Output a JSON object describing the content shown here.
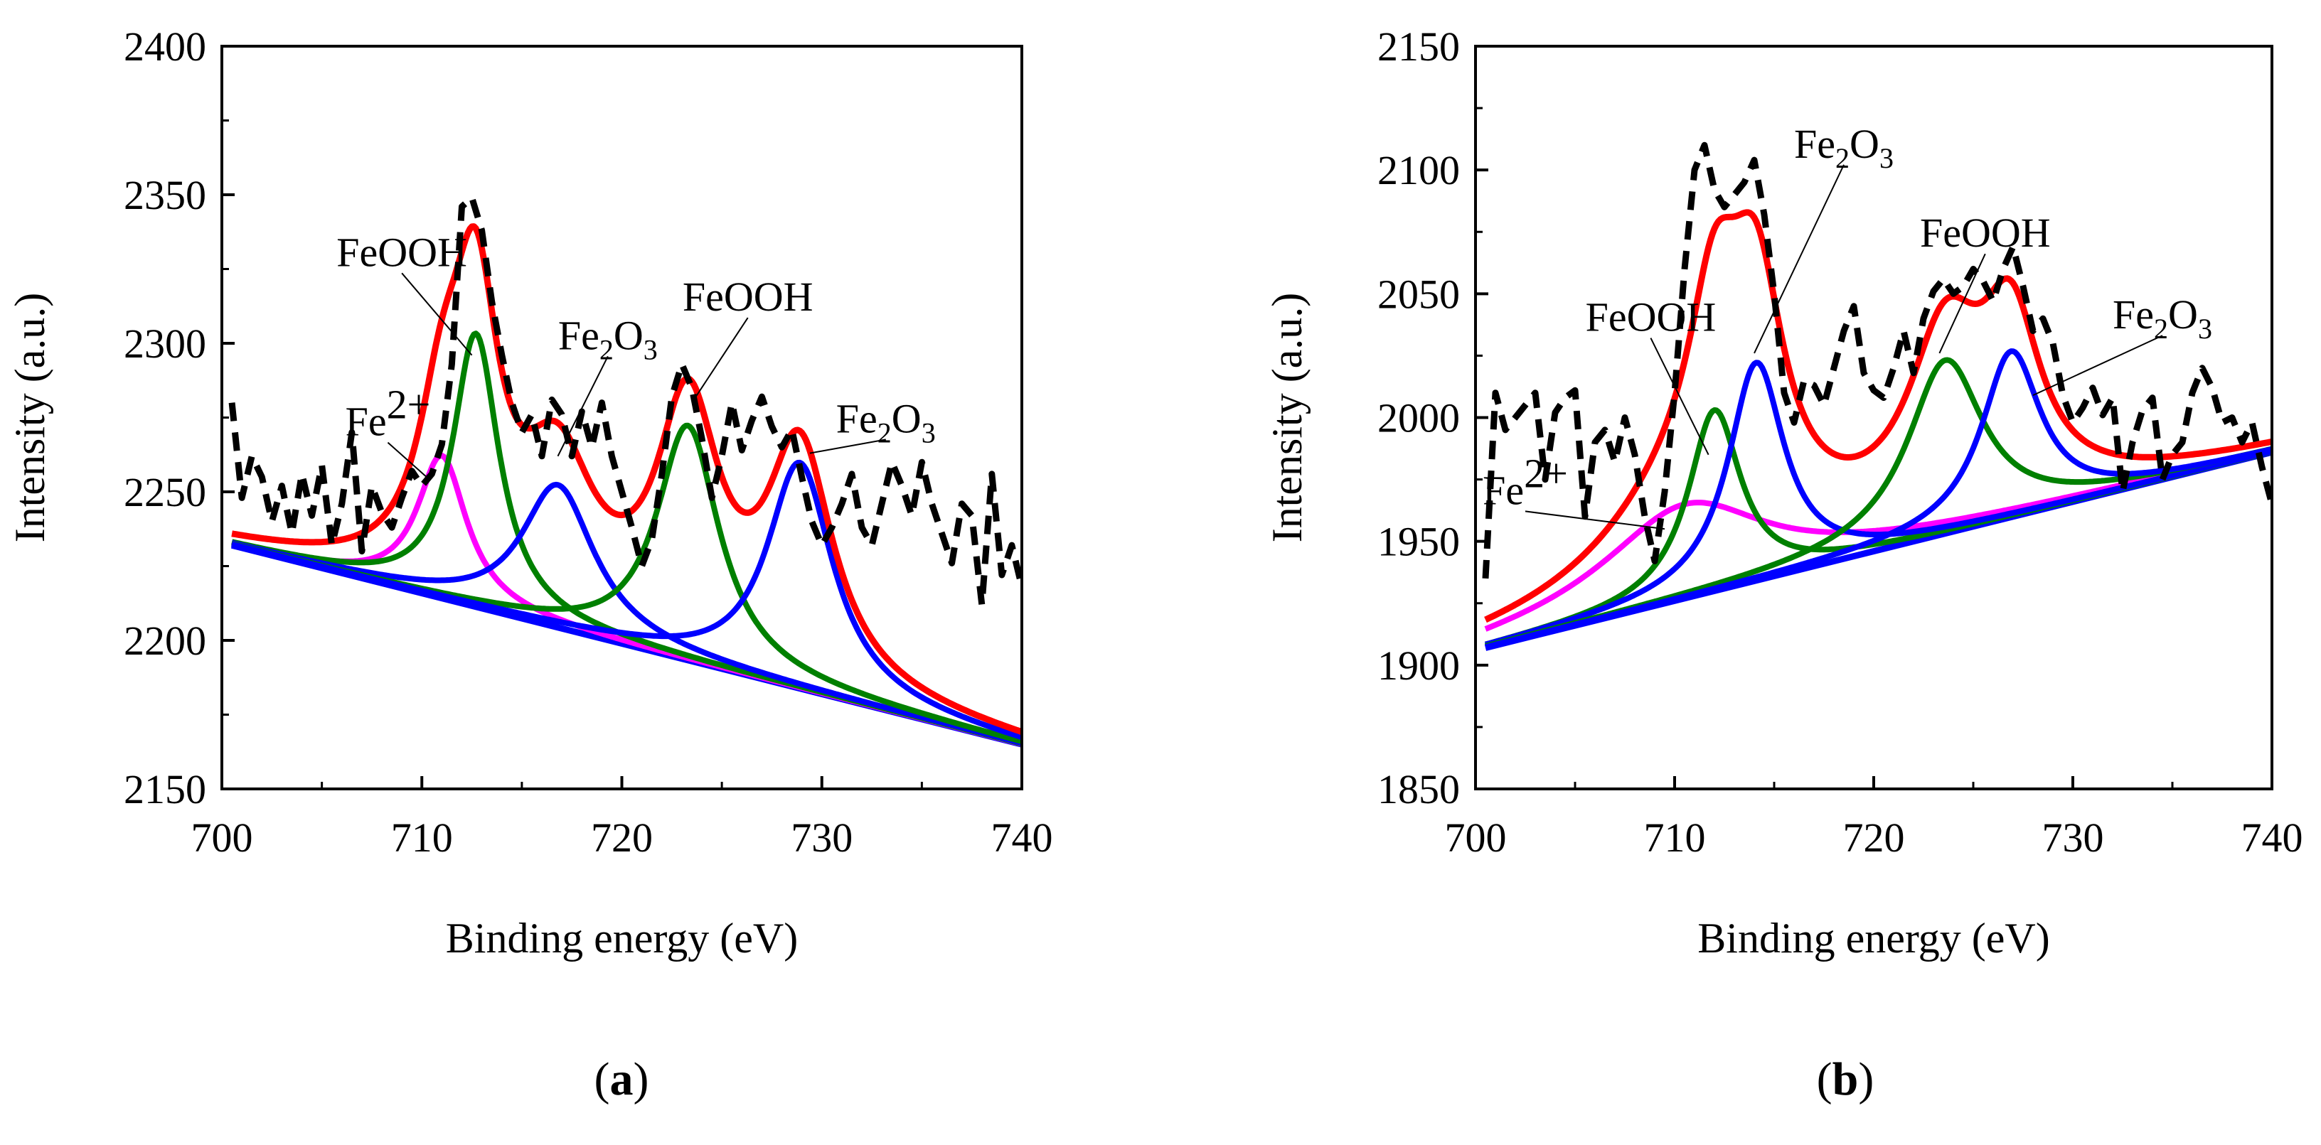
{
  "chart_data": [
    {
      "type": "line",
      "panel_label": {
        "open": "(",
        "letter": "a",
        "close": ")"
      },
      "xlabel": "Binding energy (eV)",
      "ylabel": "Intensity (a.u.)",
      "xlim": [
        700,
        740
      ],
      "ylim": [
        2150,
        2400
      ],
      "xticks": [
        700,
        710,
        720,
        730,
        740
      ],
      "yticks": [
        2150,
        2200,
        2250,
        2300,
        2350,
        2400
      ],
      "xtick_labels": [
        "700",
        "710",
        "720",
        "730",
        "740"
      ],
      "ytick_labels": [
        "2150",
        "2200",
        "2250",
        "2300",
        "2350",
        "2400"
      ],
      "colors": {
        "raw": "#000000",
        "envelope": "#ff0000",
        "fe2": "#ff00ff",
        "feooh": "#008000",
        "fe2o3": "#0000ff",
        "baseline": "#0000ff"
      },
      "baseline": {
        "x": [
          700.5,
          740
        ],
        "y": [
          2232,
          2165
        ]
      },
      "peaks": [
        {
          "series": "fe2",
          "color_key": "fe2",
          "center": 711.0,
          "height": 48,
          "width": 1.5
        },
        {
          "series": "feooh",
          "color_key": "feooh",
          "center": 712.7,
          "height": 92,
          "width": 1.4
        },
        {
          "series": "fe2o3",
          "color_key": "fe2o3",
          "center": 716.8,
          "height": 48,
          "width": 2.2
        },
        {
          "series": "feooh",
          "color_key": "feooh",
          "center": 723.3,
          "height": 79,
          "width": 1.9
        },
        {
          "series": "fe2o3",
          "color_key": "fe2o3",
          "center": 728.9,
          "height": 76,
          "width": 2.0
        }
      ],
      "raw_data": {
        "x": [
          700.5,
          701,
          701.5,
          702,
          702.5,
          703,
          703.5,
          704,
          704.5,
          705,
          705.5,
          706,
          706.5,
          707,
          707.5,
          708,
          708.5,
          709,
          709.5,
          710,
          710.5,
          711,
          711.5,
          712,
          712.5,
          713,
          713.5,
          714,
          714.5,
          715,
          715.5,
          716,
          716.5,
          717,
          717.5,
          718,
          718.5,
          719,
          719.5,
          720,
          720.5,
          721,
          721.5,
          722,
          722.5,
          723,
          723.5,
          724,
          724.5,
          725,
          725.5,
          726,
          726.5,
          727,
          727.5,
          728,
          728.5,
          729,
          729.5,
          730,
          730.5,
          731,
          731.5,
          732,
          732.5,
          733,
          733.5,
          734,
          734.5,
          735,
          735.5,
          736,
          736.5,
          737,
          737.5,
          738,
          738.5,
          739,
          739.5,
          740
        ],
        "y": [
          2280,
          2248,
          2262,
          2255,
          2240,
          2252,
          2236,
          2256,
          2242,
          2259,
          2232,
          2246,
          2270,
          2230,
          2252,
          2243,
          2238,
          2248,
          2257,
          2252,
          2256,
          2266,
          2293,
          2346,
          2349,
          2338,
          2314,
          2296,
          2280,
          2270,
          2276,
          2262,
          2281,
          2276,
          2262,
          2277,
          2265,
          2280,
          2262,
          2250,
          2238,
          2225,
          2234,
          2256,
          2282,
          2293,
          2285,
          2268,
          2248,
          2262,
          2280,
          2264,
          2274,
          2282,
          2272,
          2265,
          2271,
          2255,
          2240,
          2232,
          2238,
          2246,
          2256,
          2238,
          2232,
          2246,
          2260,
          2252,
          2242,
          2260,
          2246,
          2236,
          2226,
          2246,
          2242,
          2212,
          2256,
          2222,
          2232,
          2218
        ]
      },
      "annotations": [
        {
          "text": "FeOOH",
          "sub": "",
          "tail": "",
          "anchor_x": 712.5,
          "anchor_y": 2296,
          "label_x": 709.0,
          "label_y": 2326,
          "line": true
        },
        {
          "text": "Fe",
          "sub": "",
          "tail": "",
          "sup": "2+",
          "anchor_x": 710.4,
          "anchor_y": 2254,
          "label_x": 708.3,
          "label_y": 2269,
          "line": true
        },
        {
          "text": "Fe",
          "sub": "2",
          "tail": "O",
          "sub2": "3",
          "anchor_x": 716.8,
          "anchor_y": 2262,
          "label_x": 719.3,
          "label_y": 2298,
          "line": true
        },
        {
          "text": "FeOOH",
          "sub": "",
          "tail": "",
          "anchor_x": 723.6,
          "anchor_y": 2281,
          "label_x": 726.3,
          "label_y": 2311,
          "line": true
        },
        {
          "text": "Fe",
          "sub": "2",
          "tail": "O",
          "sub2": "3",
          "anchor_x": 729.4,
          "anchor_y": 2263,
          "label_x": 733.2,
          "label_y": 2270,
          "line": true
        }
      ]
    },
    {
      "type": "line",
      "panel_label": {
        "open": "(",
        "letter": "b",
        "close": ")"
      },
      "xlabel": "Binding energy (eV)",
      "ylabel": "Intensity (a.u.)",
      "xlim": [
        700,
        740
      ],
      "ylim": [
        1850,
        2150
      ],
      "xticks": [
        700,
        710,
        720,
        730,
        740
      ],
      "yticks": [
        1850,
        1900,
        1950,
        2000,
        2050,
        2100,
        2150
      ],
      "xtick_labels": [
        "700",
        "710",
        "720",
        "730",
        "740"
      ],
      "ytick_labels": [
        "1850",
        "1900",
        "1950",
        "2000",
        "2050",
        "2100",
        "2150"
      ],
      "colors": {
        "raw": "#000000",
        "envelope": "#ff0000",
        "fe2": "#ff00ff",
        "feooh": "#008000",
        "fe2o3": "#0000ff",
        "baseline": "#0000ff"
      },
      "baseline": {
        "x": [
          700.5,
          740
        ],
        "y": [
          1907,
          1986
        ]
      },
      "peaks": [
        {
          "series": "fe2",
          "color_key": "fe2",
          "center": 710.5,
          "height": 38,
          "width": 5.0
        },
        {
          "series": "feooh",
          "color_key": "feooh",
          "center": 712.0,
          "height": 73,
          "width": 1.6
        },
        {
          "series": "fe2o3",
          "color_key": "fe2o3",
          "center": 714.1,
          "height": 88,
          "width": 1.7
        },
        {
          "series": "feooh",
          "color_key": "feooh",
          "center": 723.6,
          "height": 70,
          "width": 2.3
        },
        {
          "series": "fe2o3",
          "color_key": "fe2o3",
          "center": 726.9,
          "height": 67,
          "width": 1.8
        }
      ],
      "raw_data": {
        "x": [
          700.5,
          701,
          701.5,
          702,
          702.5,
          703,
          703.5,
          704,
          704.5,
          705,
          705.5,
          706,
          706.5,
          707,
          707.5,
          708,
          708.5,
          709,
          709.5,
          710,
          710.5,
          711,
          711.5,
          712,
          712.5,
          713,
          713.5,
          714,
          714.5,
          715,
          715.5,
          716,
          716.5,
          717,
          717.5,
          718,
          718.5,
          719,
          719.5,
          720,
          720.5,
          721,
          721.5,
          722,
          722.5,
          723,
          723.5,
          724,
          724.5,
          725,
          725.5,
          726,
          726.5,
          727,
          727.5,
          728,
          728.5,
          729,
          729.5,
          730,
          730.5,
          731,
          731.5,
          732,
          732.5,
          733,
          733.5,
          734,
          734.5,
          735,
          735.5,
          736,
          736.5,
          737,
          737.5,
          738,
          738.5,
          739,
          739.5,
          740
        ],
        "y": [
          1935,
          2010,
          1995,
          2000,
          2005,
          2010,
          1975,
          2002,
          2008,
          2011,
          1960,
          1990,
          1995,
          1982,
          2000,
          1985,
          1960,
          1942,
          1970,
          2010,
          2060,
          2100,
          2110,
          2092,
          2085,
          2090,
          2095,
          2104,
          2082,
          2050,
          2010,
          1998,
          2015,
          2013,
          2005,
          2020,
          2035,
          2045,
          2018,
          2011,
          2008,
          2020,
          2035,
          2018,
          2040,
          2051,
          2056,
          2050,
          2053,
          2060,
          2055,
          2047,
          2060,
          2069,
          2053,
          2035,
          2040,
          2030,
          2009,
          1998,
          2004,
          2012,
          2001,
          2008,
          1970,
          1990,
          2003,
          2008,
          1975,
          1985,
          1990,
          2010,
          2020,
          2012,
          1998,
          2000,
          1990,
          1998,
          1980,
          1965
        ]
      },
      "annotations": [
        {
          "text": "Fe",
          "sub": "2",
          "tail": "O",
          "sub2": "3",
          "anchor_x": 714.0,
          "anchor_y": 2026,
          "label_x": 718.5,
          "label_y": 2105,
          "line": true
        },
        {
          "text": "FeOOH",
          "sub": "",
          "tail": "",
          "anchor_x": 723.3,
          "anchor_y": 2026,
          "label_x": 725.6,
          "label_y": 2069,
          "line": true
        },
        {
          "text": "FeOOH",
          "sub": "",
          "tail": "",
          "anchor_x": 711.7,
          "anchor_y": 1985,
          "label_x": 708.8,
          "label_y": 2035,
          "line": true
        },
        {
          "text": "Fe",
          "sub": "2",
          "tail": "O",
          "sub2": "3",
          "anchor_x": 728.0,
          "anchor_y": 2009,
          "label_x": 734.5,
          "label_y": 2036,
          "line": true
        },
        {
          "text": "Fe",
          "sub": "",
          "tail": "",
          "sup": "2+",
          "anchor_x": 709.5,
          "anchor_y": 1955,
          "label_x": 702.5,
          "label_y": 1965,
          "line": true
        }
      ]
    }
  ]
}
